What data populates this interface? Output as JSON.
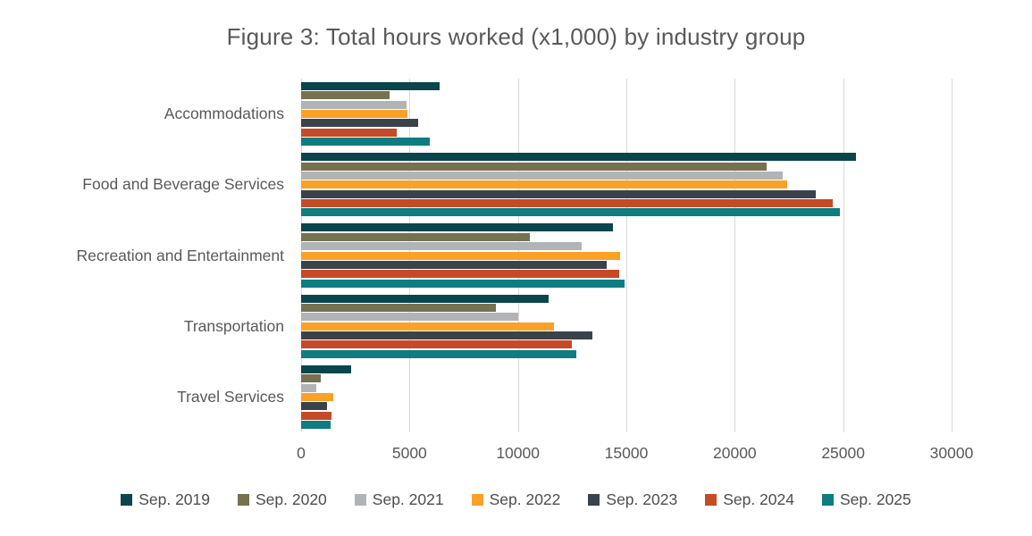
{
  "chart_data": {
    "type": "bar",
    "orientation": "horizontal",
    "title": "Figure 3: Total hours worked (x1,000) by industry group",
    "xlabel": "",
    "ylabel": "",
    "xlim": [
      0,
      30000
    ],
    "xticks": [
      "0",
      "5000",
      "10000",
      "15000",
      "20000",
      "25000",
      "30000"
    ],
    "grid": true,
    "legend_position": "bottom",
    "gridline_color": "#d9d9d9",
    "title_color": "#595959",
    "axis_text_color": "#595959",
    "categories": [
      "Accommodations",
      "Food and Beverage Services",
      "Recreation and Entertainment",
      "Transportation",
      "Travel Services"
    ],
    "series": [
      {
        "name": "Sep. 2019",
        "color": "#0a454d",
        "values": [
          6400,
          25600,
          14400,
          11400,
          2300
        ]
      },
      {
        "name": "Sep. 2020",
        "color": "#76714f",
        "values": [
          4100,
          21450,
          10550,
          9000,
          900
        ]
      },
      {
        "name": "Sep. 2021",
        "color": "#b1b4b6",
        "values": [
          4850,
          22200,
          12950,
          10000,
          700
        ]
      },
      {
        "name": "Sep. 2022",
        "color": "#fba127",
        "values": [
          4900,
          22400,
          14700,
          11650,
          1500
        ]
      },
      {
        "name": "Sep. 2023",
        "color": "#3a434c",
        "values": [
          5400,
          23750,
          14100,
          13450,
          1200
        ]
      },
      {
        "name": "Sep. 2024",
        "color": "#c74a26",
        "values": [
          4400,
          24500,
          14650,
          12500,
          1400
        ]
      },
      {
        "name": "Sep. 2025",
        "color": "#0e7c81",
        "values": [
          5950,
          24850,
          14900,
          12700,
          1350
        ]
      }
    ]
  }
}
